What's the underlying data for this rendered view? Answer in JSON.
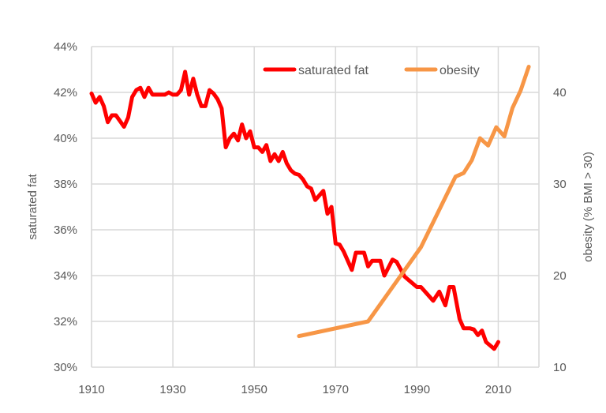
{
  "chart_data": {
    "type": "line",
    "title": "",
    "xlabel": "",
    "ylabel": "saturated fat",
    "y2label": "obesity (% BMI > 30)",
    "xlim": [
      1910,
      2020
    ],
    "ylim": [
      30,
      44
    ],
    "y2lim": [
      10,
      45
    ],
    "x_ticks": [
      1910,
      1930,
      1950,
      1970,
      1990,
      2010
    ],
    "y_ticks": [
      "30%",
      "32%",
      "34%",
      "36%",
      "38%",
      "40%",
      "42%",
      "44%"
    ],
    "y_tick_values": [
      30,
      32,
      34,
      36,
      38,
      40,
      42,
      44
    ],
    "y2_ticks": [
      10,
      20,
      30,
      40
    ],
    "grid": true,
    "legend_position": "top",
    "series": [
      {
        "name": "saturated fat",
        "axis": "left",
        "color": "#ff0000",
        "x": [
          1910,
          1911,
          1912,
          1913,
          1914,
          1915,
          1916,
          1917,
          1918,
          1919,
          1920,
          1921,
          1922,
          1923,
          1924,
          1925,
          1926,
          1927,
          1928,
          1929,
          1930,
          1931,
          1932,
          1933,
          1934,
          1935,
          1936,
          1937,
          1938,
          1939,
          1940,
          1941,
          1942,
          1943,
          1944,
          1945,
          1946,
          1947,
          1948,
          1949,
          1950,
          1951,
          1952,
          1953,
          1954,
          1955,
          1956,
          1957,
          1958,
          1959,
          1960,
          1961,
          1962,
          1963,
          1964,
          1965,
          1967,
          1968,
          1969,
          1970,
          1971,
          1972,
          1974,
          1975,
          1977,
          1978,
          1979,
          1981,
          1982,
          1984,
          1985,
          1987,
          1988,
          1990,
          1991,
          1992.5,
          1994,
          1995.5,
          1997,
          1998,
          1999,
          2000.5,
          2001.5,
          2003,
          2004,
          2005,
          2006,
          2007,
          2009,
          2010
        ],
        "values": [
          41.95,
          41.55,
          41.8,
          41.4,
          40.7,
          41.0,
          41.0,
          40.75,
          40.5,
          40.9,
          41.8,
          42.1,
          42.2,
          41.8,
          42.2,
          41.9,
          41.9,
          41.9,
          41.9,
          42.0,
          41.9,
          41.9,
          42.1,
          42.9,
          41.9,
          42.6,
          41.9,
          41.4,
          41.4,
          42.1,
          41.95,
          41.7,
          41.3,
          39.6,
          40.0,
          40.2,
          39.9,
          40.6,
          40.0,
          40.3,
          39.6,
          39.6,
          39.4,
          39.7,
          39.0,
          39.3,
          39.0,
          39.4,
          38.9,
          38.6,
          38.45,
          38.4,
          38.2,
          37.9,
          37.8,
          37.3,
          37.7,
          36.7,
          37.0,
          35.4,
          35.35,
          35.05,
          34.25,
          35.0,
          35.0,
          34.4,
          34.65,
          34.65,
          34.0,
          34.7,
          34.6,
          33.95,
          33.8,
          33.5,
          33.5,
          33.2,
          32.9,
          33.3,
          32.7,
          33.5,
          33.5,
          32.1,
          31.7,
          31.7,
          31.65,
          31.4,
          31.6,
          31.1,
          30.8,
          31.1
        ]
      },
      {
        "name": "obesity",
        "axis": "right",
        "color": "#f79646",
        "x": [
          1961,
          1978,
          1991,
          1999.5,
          2001.5,
          2003.5,
          2005.5,
          2007.5,
          2009.5,
          2011.5,
          2013.5,
          2015.5,
          2017.5
        ],
        "values": [
          13.4,
          15.0,
          23.1,
          30.8,
          31.2,
          32.6,
          35.0,
          34.2,
          36.2,
          35.2,
          38.3,
          40.2,
          42.8
        ]
      }
    ]
  }
}
